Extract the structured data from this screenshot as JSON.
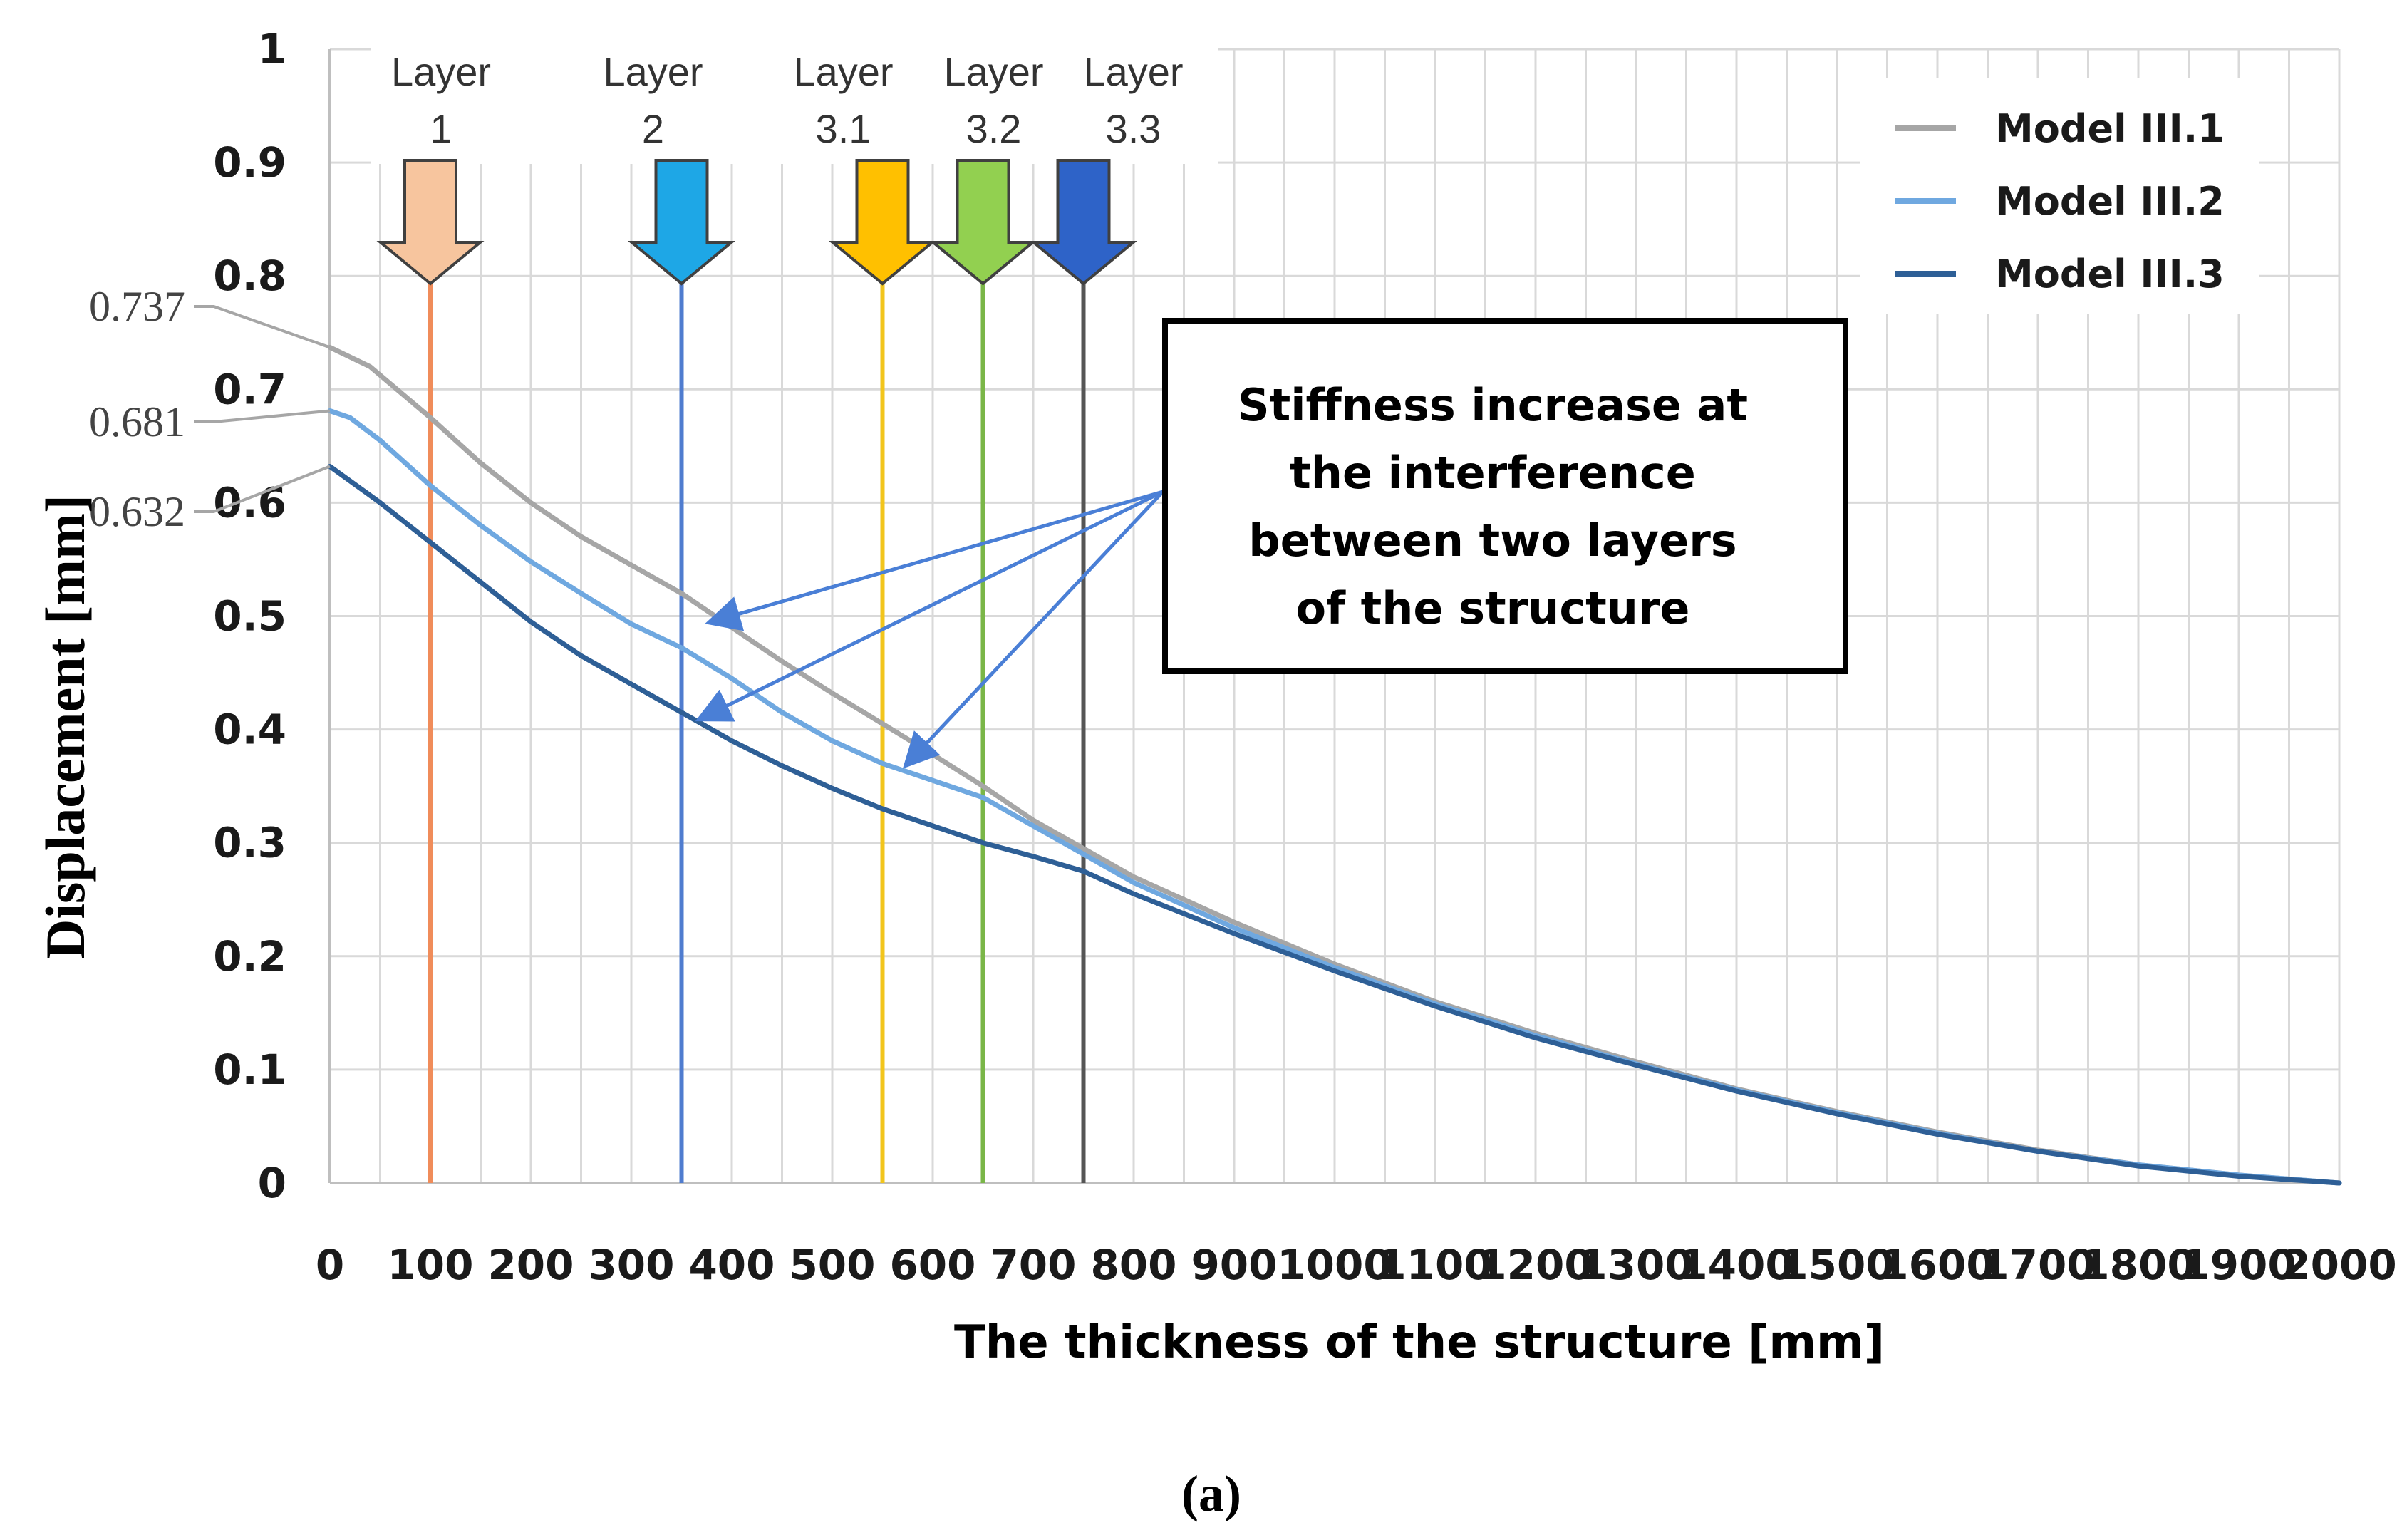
{
  "chart_data": {
    "type": "line",
    "title": "",
    "xlabel": "The thickness of the structure [mm]",
    "ylabel": "Displacement [mm]",
    "xlim": [
      0,
      2000
    ],
    "ylim": [
      0,
      1
    ],
    "grid": true,
    "legend_position": "top-right",
    "x_ticks": [
      0,
      100,
      200,
      300,
      400,
      500,
      600,
      700,
      800,
      900,
      1000,
      1100,
      1200,
      1300,
      1400,
      1500,
      1600,
      1700,
      1800,
      1900,
      2000
    ],
    "x_tick_labels": [
      "0",
      "100",
      "200",
      "300",
      "400",
      "500",
      "600",
      "700",
      "800",
      "900",
      "1000",
      "1100",
      "1200",
      "1300",
      "1400",
      "1500",
      "1600",
      "1700",
      "1800",
      "1900",
      "2000"
    ],
    "y_ticks": [
      0,
      0.1,
      0.2,
      0.3,
      0.4,
      0.5,
      0.6,
      0.7,
      0.8,
      0.9,
      1
    ],
    "y_tick_labels": [
      "0",
      "0.1",
      "0.2",
      "0.3",
      "0.4",
      "0.5",
      "0.6",
      "0.7",
      "0.8",
      "0.9",
      "1"
    ],
    "series": [
      {
        "name": "Model III.1",
        "color": "#a6a6a6",
        "x": [
          0,
          40,
          100,
          150,
          200,
          250,
          300,
          350,
          400,
          450,
          500,
          550,
          600,
          650,
          700,
          750,
          800,
          900,
          1000,
          1100,
          1200,
          1300,
          1400,
          1500,
          1600,
          1700,
          1800,
          1900,
          2000
        ],
        "y": [
          0.737,
          0.72,
          0.675,
          0.635,
          0.6,
          0.57,
          0.545,
          0.52,
          0.49,
          0.46,
          0.432,
          0.405,
          0.378,
          0.35,
          0.32,
          0.295,
          0.27,
          0.23,
          0.193,
          0.16,
          0.132,
          0.107,
          0.083,
          0.063,
          0.045,
          0.029,
          0.016,
          0.007,
          0.0
        ]
      },
      {
        "name": "Model III.2",
        "color": "#6fa8e0",
        "x": [
          0,
          20,
          50,
          100,
          150,
          200,
          250,
          300,
          350,
          400,
          450,
          500,
          550,
          600,
          650,
          700,
          750,
          800,
          900,
          1000,
          1100,
          1200,
          1300,
          1400,
          1500,
          1600,
          1700,
          1800,
          1900,
          2000
        ],
        "y": [
          0.681,
          0.675,
          0.655,
          0.615,
          0.58,
          0.548,
          0.52,
          0.493,
          0.472,
          0.445,
          0.415,
          0.39,
          0.37,
          0.355,
          0.34,
          0.315,
          0.29,
          0.265,
          0.225,
          0.19,
          0.158,
          0.13,
          0.105,
          0.082,
          0.062,
          0.044,
          0.028,
          0.016,
          0.007,
          0.0
        ]
      },
      {
        "name": "Model III.3",
        "color": "#2e5f96",
        "x": [
          0,
          50,
          100,
          150,
          200,
          250,
          300,
          350,
          400,
          450,
          500,
          550,
          600,
          650,
          700,
          750,
          800,
          900,
          1000,
          1100,
          1200,
          1300,
          1400,
          1500,
          1600,
          1700,
          1800,
          1900,
          2000
        ],
        "y": [
          0.632,
          0.6,
          0.565,
          0.53,
          0.495,
          0.465,
          0.44,
          0.415,
          0.39,
          0.368,
          0.348,
          0.33,
          0.315,
          0.3,
          0.288,
          0.275,
          0.255,
          0.22,
          0.187,
          0.156,
          0.128,
          0.104,
          0.081,
          0.061,
          0.043,
          0.028,
          0.015,
          0.006,
          0.0
        ]
      }
    ],
    "start_values": [
      {
        "label": "0.737",
        "y": 0.737
      },
      {
        "label": "0.681",
        "y": 0.681
      },
      {
        "label": "0.632",
        "y": 0.632
      }
    ],
    "layers": [
      {
        "line1": "Layer",
        "line2": "1",
        "x": 100,
        "color": "#f08c5a",
        "arrow_fill": "#f7c59e"
      },
      {
        "line1": "Layer",
        "line2": "2",
        "x": 350,
        "color": "#4f7ccf",
        "arrow_fill": "#1ea7e6"
      },
      {
        "line1": "Layer",
        "line2": "3.1",
        "x": 550,
        "color": "#f2c51c",
        "arrow_fill": "#ffc000"
      },
      {
        "line1": "Layer",
        "line2": "3.2",
        "x": 650,
        "color": "#7ab648",
        "arrow_fill": "#92d050"
      },
      {
        "line1": "Layer",
        "line2": "3.3",
        "x": 750,
        "color": "#555555",
        "arrow_fill": "#2e63c8"
      }
    ],
    "annotation": {
      "lines": [
        "Stiffness increase at",
        "the interference",
        "between two layers",
        "of the structure"
      ],
      "arrow_color": "#4a7fd6",
      "targets": [
        {
          "x": 380,
          "y": 0.495
        },
        {
          "x": 370,
          "y": 0.41
        },
        {
          "x": 575,
          "y": 0.37
        }
      ]
    }
  },
  "caption": "(a)"
}
